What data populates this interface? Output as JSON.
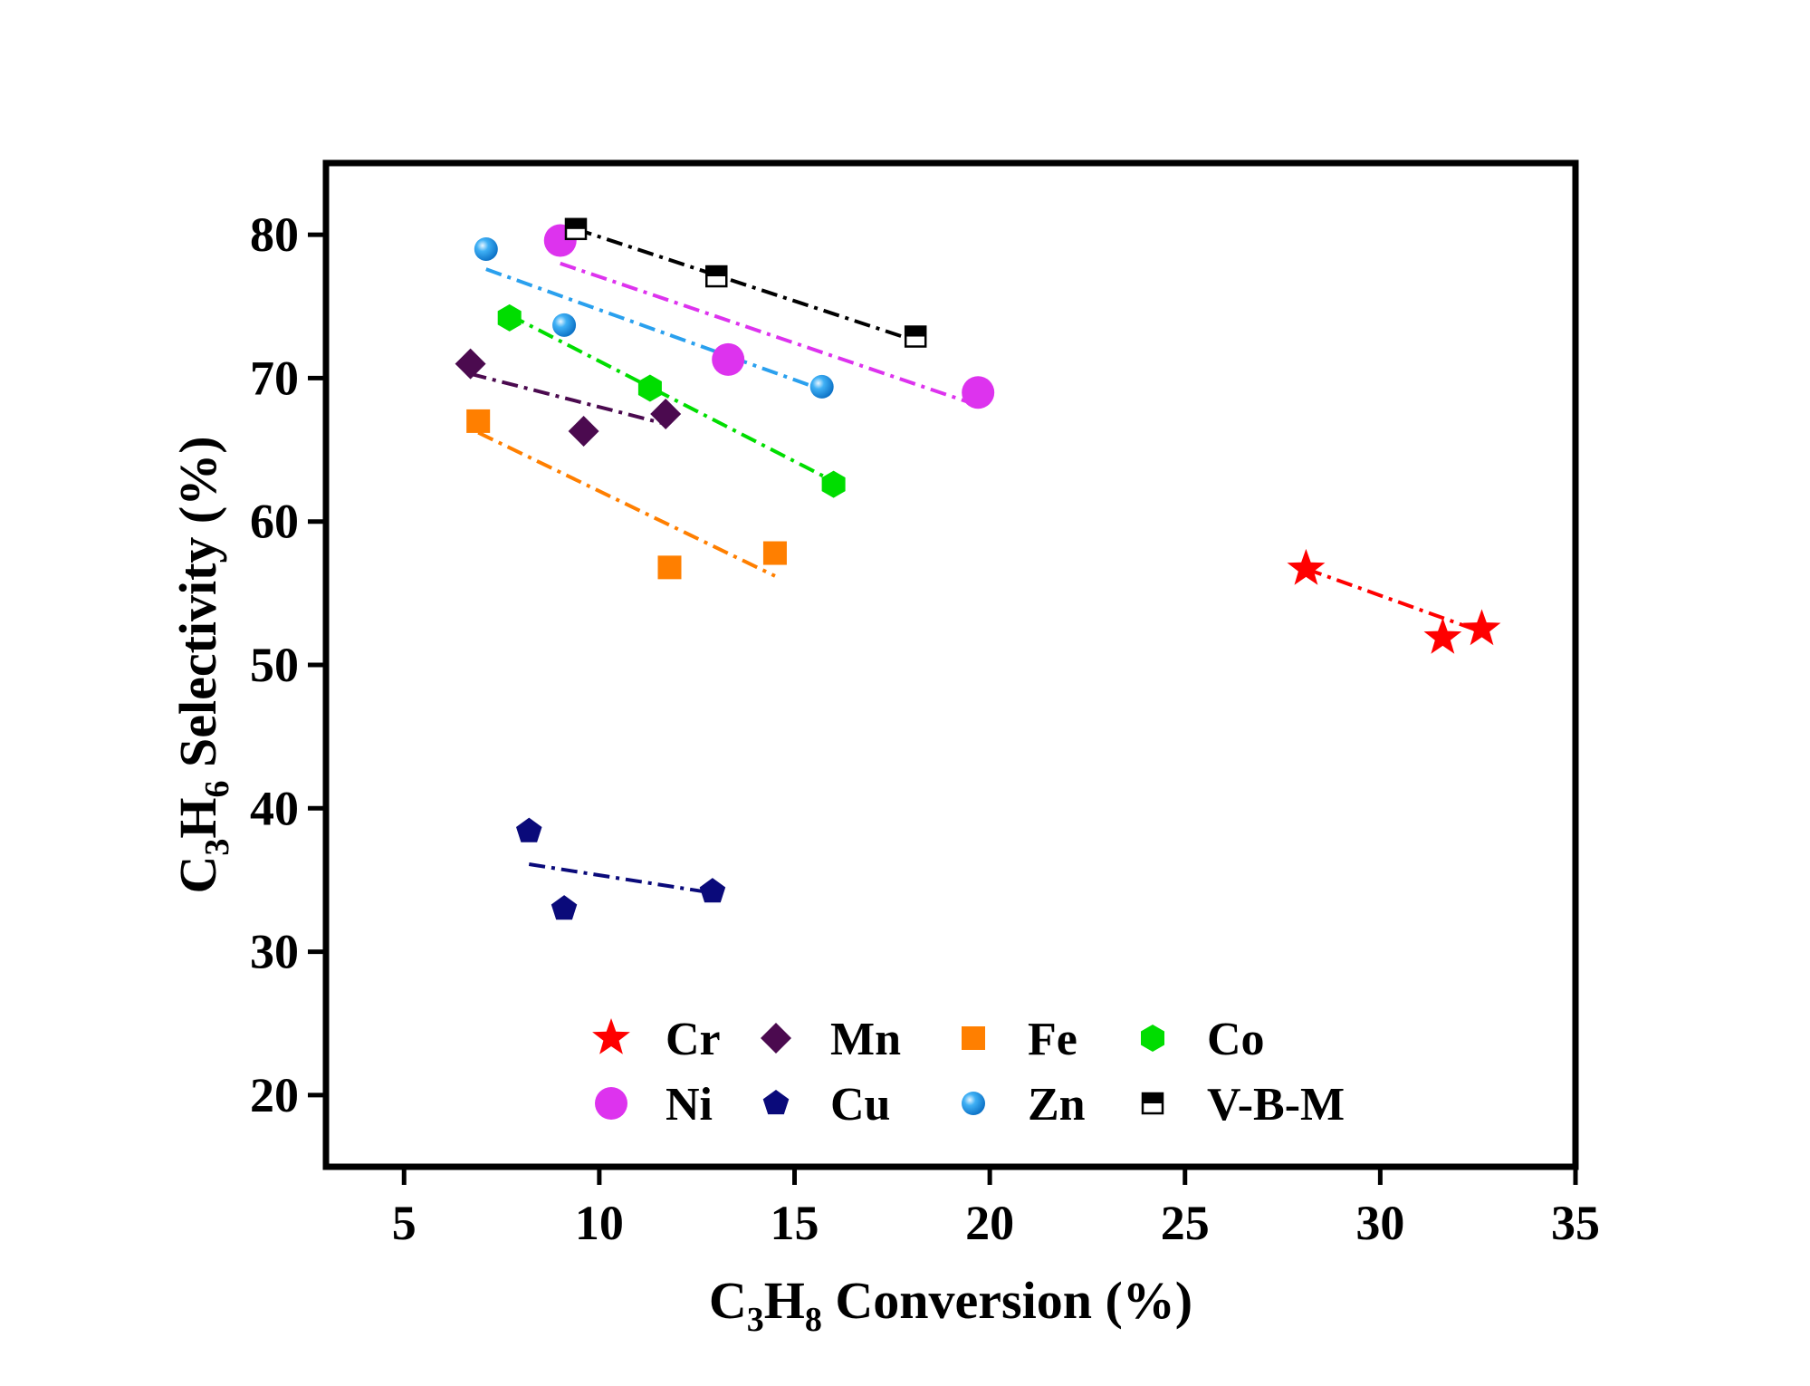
{
  "chart_data": {
    "type": "scatter",
    "title": "",
    "xlabel": "C3H8 Conversion (%)",
    "ylabel": "C3H6 Selectivity (%)",
    "xlabel_parts": {
      "a": "C",
      "sub1": "3",
      "b": "H",
      "sub2": "8",
      "c": " Conversion (%)"
    },
    "ylabel_parts": {
      "a": "C",
      "sub1": "3",
      "b": "H",
      "sub2": "6",
      "c": " Selectivity (%)"
    },
    "xlim": [
      3,
      35
    ],
    "ylim": [
      15,
      85
    ],
    "xticks": [
      5,
      10,
      15,
      20,
      25,
      30,
      35
    ],
    "yticks": [
      20,
      30,
      40,
      50,
      60,
      70,
      80
    ],
    "grid": false,
    "legend_position": "bottom-center",
    "series": [
      {
        "name": "Cr",
        "color": "#ff0000",
        "marker": "star",
        "x": [
          28.1,
          31.6,
          32.6
        ],
        "y": [
          56.7,
          51.9,
          52.5
        ],
        "fit": {
          "x": [
            28.1,
            32.6
          ],
          "y": [
            56.7,
            52.3
          ]
        }
      },
      {
        "name": "Mn",
        "color": "#4b0a4f",
        "marker": "diamond",
        "x": [
          6.7,
          9.6,
          11.7
        ],
        "y": [
          71.0,
          66.3,
          67.5
        ],
        "fit": {
          "x": [
            6.7,
            11.7
          ],
          "y": [
            70.3,
            66.8
          ]
        }
      },
      {
        "name": "Fe",
        "color": "#ff7f00",
        "marker": "square",
        "x": [
          6.9,
          11.8,
          14.5
        ],
        "y": [
          67.0,
          56.8,
          57.8
        ],
        "fit": {
          "x": [
            6.9,
            14.5
          ],
          "y": [
            66.2,
            56.2
          ]
        }
      },
      {
        "name": "Co",
        "color": "#00dd00",
        "marker": "hexagon",
        "x": [
          7.7,
          11.3,
          16.0
        ],
        "y": [
          74.2,
          69.3,
          62.6
        ],
        "fit": {
          "x": [
            7.7,
            16.0
          ],
          "y": [
            74.4,
            62.8
          ]
        }
      },
      {
        "name": "Ni",
        "color": "#dd33ee",
        "marker": "circle",
        "x": [
          9.0,
          13.3,
          19.7
        ],
        "y": [
          79.6,
          71.3,
          69.0
        ],
        "fit": {
          "x": [
            9.0,
            19.7
          ],
          "y": [
            78.0,
            68.1
          ]
        }
      },
      {
        "name": "Cu",
        "color": "#0a0a7a",
        "marker": "pentagon",
        "x": [
          8.2,
          9.1,
          12.9
        ],
        "y": [
          38.4,
          33.0,
          34.2
        ],
        "fit": {
          "x": [
            8.2,
            12.9
          ],
          "y": [
            36.1,
            34.1
          ]
        }
      },
      {
        "name": "Zn",
        "color": "#2aa0ee",
        "marker": "ball",
        "x": [
          7.1,
          9.1,
          15.7
        ],
        "y": [
          79.0,
          73.7,
          69.4
        ],
        "fit": {
          "x": [
            7.1,
            15.7
          ],
          "y": [
            77.6,
            69.2
          ]
        }
      },
      {
        "name": "V-B-M",
        "color": "#000000",
        "marker": "halfsquare",
        "x": [
          9.4,
          13.0,
          18.1
        ],
        "y": [
          80.4,
          77.1,
          72.9
        ],
        "fit": {
          "x": [
            9.4,
            18.1
          ],
          "y": [
            80.4,
            72.6
          ]
        }
      }
    ]
  }
}
